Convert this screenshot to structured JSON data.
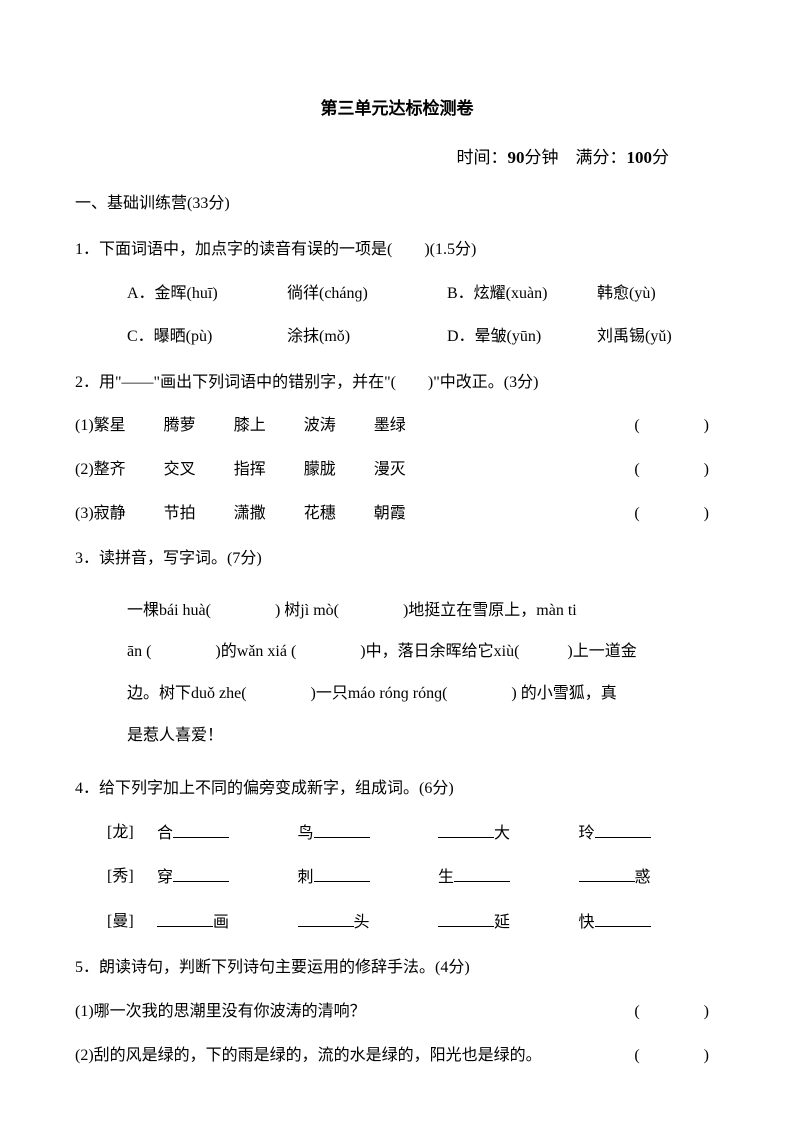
{
  "title": "第三单元达标检测卷",
  "meta": {
    "time_label": "时间：",
    "time_value": "90",
    "time_unit": "分钟",
    "full_label": "满分：",
    "full_value": "100",
    "full_unit": "分"
  },
  "section1": "一、基础训练营(33分)",
  "q1": {
    "text": "1．下面词语中，加点字的读音有误的一项是(　　)(1.5分)",
    "A1": "A．金晖(huī)",
    "A2": "徜徉(chánɡ)",
    "B1": "B．炫耀(xuàn)",
    "B2": "韩愈(yù)",
    "C1": "C．曝晒(pù)",
    "C2": "涂抹(mǒ)",
    "D1": "D．晕皱(yūn)",
    "D2": "刘禹锡(yǔ)"
  },
  "q2": {
    "text": "2．用\"——\"画出下列词语中的错别字，并在\"(　　)\"中改正。(3分)",
    "items": [
      {
        "num": "(1)",
        "words": [
          "繁星",
          "腾萝",
          "膝上",
          "波涛",
          "墨绿"
        ]
      },
      {
        "num": "(2)",
        "words": [
          "整齐",
          "交叉",
          "指挥",
          "朦胧",
          "漫灭"
        ]
      },
      {
        "num": "(3)",
        "words": [
          "寂静",
          "节拍",
          "潇撒",
          "花穗",
          "朝霞"
        ]
      }
    ],
    "paren": "(　　　　)"
  },
  "q3": {
    "text": "3．读拼音，写字词。(7分)",
    "body_parts": {
      "p1": "一棵bái huà(　　　　) 树jì mò(　　　　)地挺立在雪原上，màn ti",
      "p2": "ān (　　　　)的wǎn xiá (　　　　)中，落日余晖给它xiù(　　　)上一道金",
      "p3": "边。树下duǒ zhe(　　　　)一只máo rónɡ rónɡ(　　　　) 的小雪狐，真",
      "p4": "是惹人喜爱！"
    }
  },
  "q4": {
    "text": "4．给下列字加上不同的偏旁变成新字，组成词。(6分)",
    "rows": [
      {
        "char": "[龙]",
        "items": [
          "合",
          "鸟",
          "",
          "大　　玲",
          ""
        ]
      },
      {
        "char": "[秀]",
        "items": [
          "穿",
          "刺",
          "生",
          "",
          "惑"
        ]
      },
      {
        "char": "[曼]",
        "items": [
          "画",
          "头",
          "延",
          "快",
          ""
        ]
      }
    ]
  },
  "q5": {
    "text": "5．朗读诗句，判断下列诗句主要运用的修辞手法。(4分)",
    "items": [
      {
        "num": "(1)",
        "text": "哪一次我的思潮里没有你波涛的清响？"
      },
      {
        "num": "(2)",
        "text": "刮的风是绿的，下的雨是绿的，流的水是绿的，阳光也是绿的。"
      }
    ],
    "paren": "(　　　　)"
  }
}
